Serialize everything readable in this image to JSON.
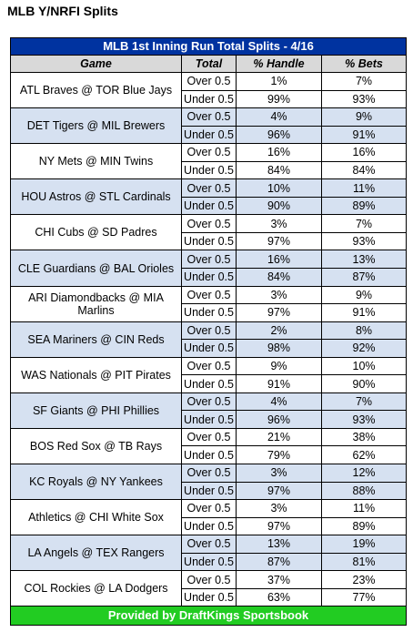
{
  "page_title": "MLB Y/NRFI Splits",
  "table": {
    "title": "MLB 1st Inning Run Total Splits - 4/16",
    "headers": [
      "Game",
      "Total",
      "% Handle",
      "% Bets"
    ],
    "footer": "Provided by DraftKings Sportsbook",
    "rows": [
      {
        "game": "ATL Braves @ TOR Blue Jays",
        "over": {
          "total": "Over 0.5",
          "handle": "1%",
          "bets": "7%"
        },
        "under": {
          "total": "Under 0.5",
          "handle": "99%",
          "bets": "93%"
        }
      },
      {
        "game": "DET Tigers @ MIL Brewers",
        "over": {
          "total": "Over 0.5",
          "handle": "4%",
          "bets": "9%"
        },
        "under": {
          "total": "Under 0.5",
          "handle": "96%",
          "bets": "91%"
        }
      },
      {
        "game": "NY Mets @ MIN Twins",
        "over": {
          "total": "Over 0.5",
          "handle": "16%",
          "bets": "16%"
        },
        "under": {
          "total": "Under 0.5",
          "handle": "84%",
          "bets": "84%"
        }
      },
      {
        "game": "HOU Astros @ STL Cardinals",
        "over": {
          "total": "Over 0.5",
          "handle": "10%",
          "bets": "11%"
        },
        "under": {
          "total": "Under 0.5",
          "handle": "90%",
          "bets": "89%"
        }
      },
      {
        "game": "CHI Cubs @ SD Padres",
        "over": {
          "total": "Over 0.5",
          "handle": "3%",
          "bets": "7%"
        },
        "under": {
          "total": "Under 0.5",
          "handle": "97%",
          "bets": "93%"
        }
      },
      {
        "game": "CLE Guardians @ BAL Orioles",
        "over": {
          "total": "Over 0.5",
          "handle": "16%",
          "bets": "13%"
        },
        "under": {
          "total": "Under 0.5",
          "handle": "84%",
          "bets": "87%"
        }
      },
      {
        "game": "ARI Diamondbacks @ MIA Marlins",
        "over": {
          "total": "Over 0.5",
          "handle": "3%",
          "bets": "9%"
        },
        "under": {
          "total": "Under 0.5",
          "handle": "97%",
          "bets": "91%"
        }
      },
      {
        "game": "SEA Mariners @ CIN Reds",
        "over": {
          "total": "Over 0.5",
          "handle": "2%",
          "bets": "8%"
        },
        "under": {
          "total": "Under 0.5",
          "handle": "98%",
          "bets": "92%"
        }
      },
      {
        "game": "WAS Nationals @ PIT Pirates",
        "over": {
          "total": "Over 0.5",
          "handle": "9%",
          "bets": "10%"
        },
        "under": {
          "total": "Under 0.5",
          "handle": "91%",
          "bets": "90%"
        }
      },
      {
        "game": "SF Giants @ PHI Phillies",
        "over": {
          "total": "Over 0.5",
          "handle": "4%",
          "bets": "7%"
        },
        "under": {
          "total": "Under 0.5",
          "handle": "96%",
          "bets": "93%"
        }
      },
      {
        "game": "BOS Red Sox @ TB Rays",
        "over": {
          "total": "Over 0.5",
          "handle": "21%",
          "bets": "38%"
        },
        "under": {
          "total": "Under 0.5",
          "handle": "79%",
          "bets": "62%"
        }
      },
      {
        "game": "KC Royals @ NY Yankees",
        "over": {
          "total": "Over 0.5",
          "handle": "3%",
          "bets": "12%"
        },
        "under": {
          "total": "Under 0.5",
          "handle": "97%",
          "bets": "88%"
        }
      },
      {
        "game": "Athletics @ CHI White Sox",
        "over": {
          "total": "Over 0.5",
          "handle": "3%",
          "bets": "11%"
        },
        "under": {
          "total": "Under 0.5",
          "handle": "97%",
          "bets": "89%"
        }
      },
      {
        "game": "LA Angels @ TEX Rangers",
        "over": {
          "total": "Over 0.5",
          "handle": "13%",
          "bets": "19%"
        },
        "under": {
          "total": "Under 0.5",
          "handle": "87%",
          "bets": "81%"
        }
      },
      {
        "game": "COL Rockies @ LA Dodgers",
        "over": {
          "total": "Over 0.5",
          "handle": "37%",
          "bets": "23%"
        },
        "under": {
          "total": "Under 0.5",
          "handle": "63%",
          "bets": "77%"
        }
      }
    ]
  }
}
